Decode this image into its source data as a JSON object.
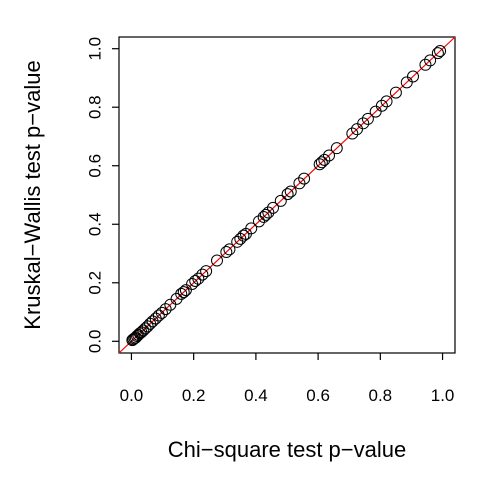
{
  "chart_data": {
    "type": "scatter",
    "title": "",
    "xlabel": "Chi−square test p−value",
    "ylabel": "Kruskal−Wallis test p−value",
    "xlim": [
      -0.04,
      1.04
    ],
    "ylim": [
      -0.04,
      1.04
    ],
    "x_ticks": [
      "0.0",
      "0.2",
      "0.4",
      "0.6",
      "0.8",
      "1.0"
    ],
    "y_ticks": [
      "0.0",
      "0.2",
      "0.4",
      "0.6",
      "0.8",
      "1.0"
    ],
    "grid": false,
    "point_color": "#000000",
    "reference_line": {
      "type": "y=x",
      "color": "#ff0000"
    },
    "points": [
      [
        0.003,
        0.004
      ],
      [
        0.006,
        0.007
      ],
      [
        0.01,
        0.01
      ],
      [
        0.014,
        0.013
      ],
      [
        0.018,
        0.018
      ],
      [
        0.022,
        0.022
      ],
      [
        0.027,
        0.027
      ],
      [
        0.032,
        0.031
      ],
      [
        0.038,
        0.037
      ],
      [
        0.045,
        0.044
      ],
      [
        0.052,
        0.051
      ],
      [
        0.06,
        0.06
      ],
      [
        0.068,
        0.068
      ],
      [
        0.078,
        0.078
      ],
      [
        0.088,
        0.088
      ],
      [
        0.098,
        0.097
      ],
      [
        0.11,
        0.11
      ],
      [
        0.125,
        0.125
      ],
      [
        0.145,
        0.145
      ],
      [
        0.16,
        0.162
      ],
      [
        0.168,
        0.168
      ],
      [
        0.175,
        0.175
      ],
      [
        0.195,
        0.196
      ],
      [
        0.205,
        0.206
      ],
      [
        0.215,
        0.214
      ],
      [
        0.228,
        0.228
      ],
      [
        0.24,
        0.24
      ],
      [
        0.275,
        0.276
      ],
      [
        0.305,
        0.305
      ],
      [
        0.315,
        0.314
      ],
      [
        0.34,
        0.34
      ],
      [
        0.35,
        0.35
      ],
      [
        0.36,
        0.361
      ],
      [
        0.368,
        0.367
      ],
      [
        0.385,
        0.386
      ],
      [
        0.41,
        0.41
      ],
      [
        0.425,
        0.425
      ],
      [
        0.432,
        0.432
      ],
      [
        0.44,
        0.44
      ],
      [
        0.455,
        0.456
      ],
      [
        0.48,
        0.48
      ],
      [
        0.502,
        0.503
      ],
      [
        0.512,
        0.512
      ],
      [
        0.54,
        0.54
      ],
      [
        0.555,
        0.556
      ],
      [
        0.605,
        0.605
      ],
      [
        0.612,
        0.612
      ],
      [
        0.62,
        0.62
      ],
      [
        0.635,
        0.635
      ],
      [
        0.66,
        0.66
      ],
      [
        0.71,
        0.71
      ],
      [
        0.725,
        0.725
      ],
      [
        0.745,
        0.745
      ],
      [
        0.76,
        0.76
      ],
      [
        0.785,
        0.785
      ],
      [
        0.805,
        0.805
      ],
      [
        0.82,
        0.82
      ],
      [
        0.85,
        0.85
      ],
      [
        0.885,
        0.885
      ],
      [
        0.905,
        0.905
      ],
      [
        0.945,
        0.945
      ],
      [
        0.96,
        0.96
      ],
      [
        0.985,
        0.985
      ],
      [
        0.992,
        0.992
      ]
    ]
  }
}
